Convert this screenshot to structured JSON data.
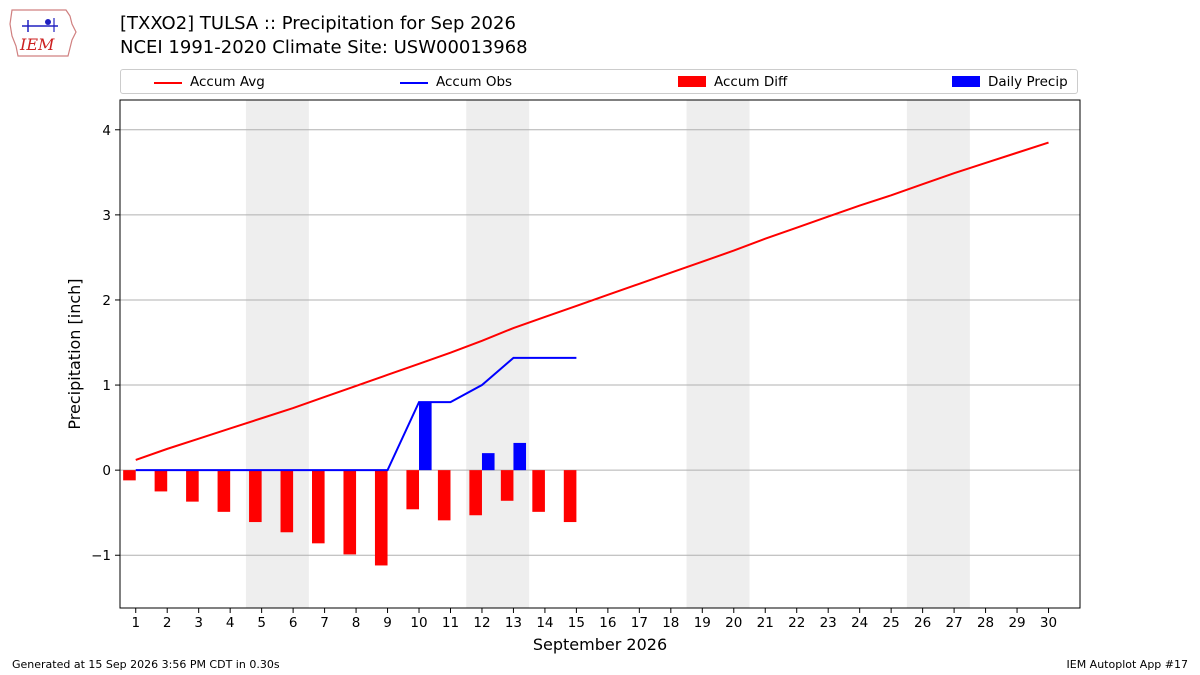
{
  "logo": {
    "text": "IEM"
  },
  "header": {
    "title_line1": "[TXXO2] TULSA :: Precipitation for Sep 2026",
    "title_line2": "NCEI 1991-2020 Climate Site: USW00013968"
  },
  "legend": {
    "items": [
      {
        "label": "Accum Avg",
        "kind": "line",
        "color": "#ff0000"
      },
      {
        "label": "Accum Obs",
        "kind": "line",
        "color": "#0000ff"
      },
      {
        "label": "Accum Diff",
        "kind": "bar",
        "color": "#ff0000"
      },
      {
        "label": "Daily Precip",
        "kind": "bar",
        "color": "#0000ff"
      }
    ]
  },
  "chart_data": {
    "type": "bar",
    "xlabel": "September 2026",
    "ylabel": "Precipitation [inch]",
    "xlim": [
      0.5,
      31.0
    ],
    "ylim": [
      -1.62,
      4.35
    ],
    "x_ticks": [
      1,
      2,
      3,
      4,
      5,
      6,
      7,
      8,
      9,
      10,
      11,
      12,
      13,
      14,
      15,
      16,
      17,
      18,
      19,
      20,
      21,
      22,
      23,
      24,
      25,
      26,
      27,
      28,
      29,
      30
    ],
    "y_ticks": [
      -1,
      0,
      1,
      2,
      3,
      4
    ],
    "y_tick_labels": [
      "−1",
      "0",
      "1",
      "2",
      "3",
      "4"
    ],
    "grid": "horizontal",
    "weekend_shading": [
      [
        4.5,
        6.5
      ],
      [
        11.5,
        13.5
      ],
      [
        18.5,
        20.5
      ],
      [
        25.5,
        27.5
      ]
    ],
    "accum_avg": {
      "name": "Accum Avg",
      "color": "#ff0000",
      "x": [
        1,
        2,
        3,
        4,
        5,
        6,
        7,
        8,
        9,
        10,
        11,
        12,
        13,
        14,
        15,
        16,
        17,
        18,
        19,
        20,
        21,
        22,
        23,
        24,
        25,
        26,
        27,
        28,
        29,
        30
      ],
      "values": [
        0.12,
        0.25,
        0.37,
        0.49,
        0.61,
        0.73,
        0.86,
        0.99,
        1.12,
        1.25,
        1.38,
        1.52,
        1.67,
        1.8,
        1.93,
        2.06,
        2.19,
        2.32,
        2.45,
        2.58,
        2.72,
        2.85,
        2.98,
        3.11,
        3.23,
        3.36,
        3.49,
        3.61,
        3.73,
        3.85
      ]
    },
    "accum_obs": {
      "name": "Accum Obs",
      "color": "#0000ff",
      "x": [
        1,
        2,
        3,
        4,
        5,
        6,
        7,
        8,
        9,
        10,
        11,
        12,
        13,
        14,
        15
      ],
      "values": [
        0,
        0,
        0,
        0,
        0,
        0,
        0,
        0,
        0,
        0.8,
        0.8,
        1.0,
        1.32,
        1.32,
        1.32
      ]
    },
    "accum_diff": {
      "name": "Accum Diff",
      "color": "#ff0000",
      "x": [
        1,
        2,
        3,
        4,
        5,
        6,
        7,
        8,
        9,
        10,
        11,
        12,
        13,
        14,
        15
      ],
      "values": [
        -0.12,
        -0.25,
        -0.37,
        -0.49,
        -0.61,
        -0.73,
        -0.86,
        -0.99,
        -1.12,
        -0.46,
        -0.59,
        -0.53,
        -0.36,
        -0.49,
        -0.61
      ]
    },
    "daily_precip": {
      "name": "Daily Precip",
      "color": "#0000ff",
      "x": [
        1,
        2,
        3,
        4,
        5,
        6,
        7,
        8,
        9,
        10,
        11,
        12,
        13,
        14,
        15
      ],
      "values": [
        0,
        0,
        0,
        0,
        0,
        0,
        0,
        0,
        0,
        0.8,
        0,
        0.2,
        0.32,
        0,
        0
      ]
    }
  },
  "footer": {
    "generated": "Generated at 15 Sep 2026 3:56 PM CDT in 0.30s",
    "app": "IEM Autoplot App #17"
  }
}
